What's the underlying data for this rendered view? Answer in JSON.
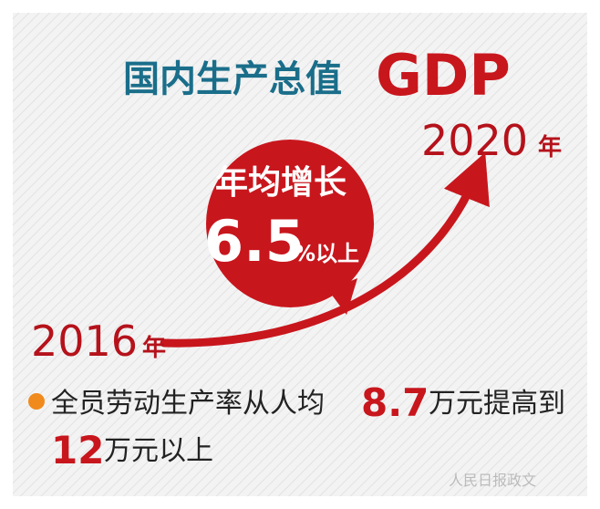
{
  "title": {
    "text": "国内生产总值",
    "acronym": "GDP"
  },
  "end_year": {
    "year": "2020",
    "unit": "年"
  },
  "start_year": {
    "year": "2016",
    "unit": "年"
  },
  "growth": {
    "label": "年均增长",
    "value": "6.5",
    "suffix": "%以上"
  },
  "note": {
    "text": "全员劳动生产率从人均",
    "from_value": "8.7",
    "middle": "万元提高到",
    "to_value": "12",
    "end": "万元以上"
  },
  "watermark": "人民日报政文"
}
